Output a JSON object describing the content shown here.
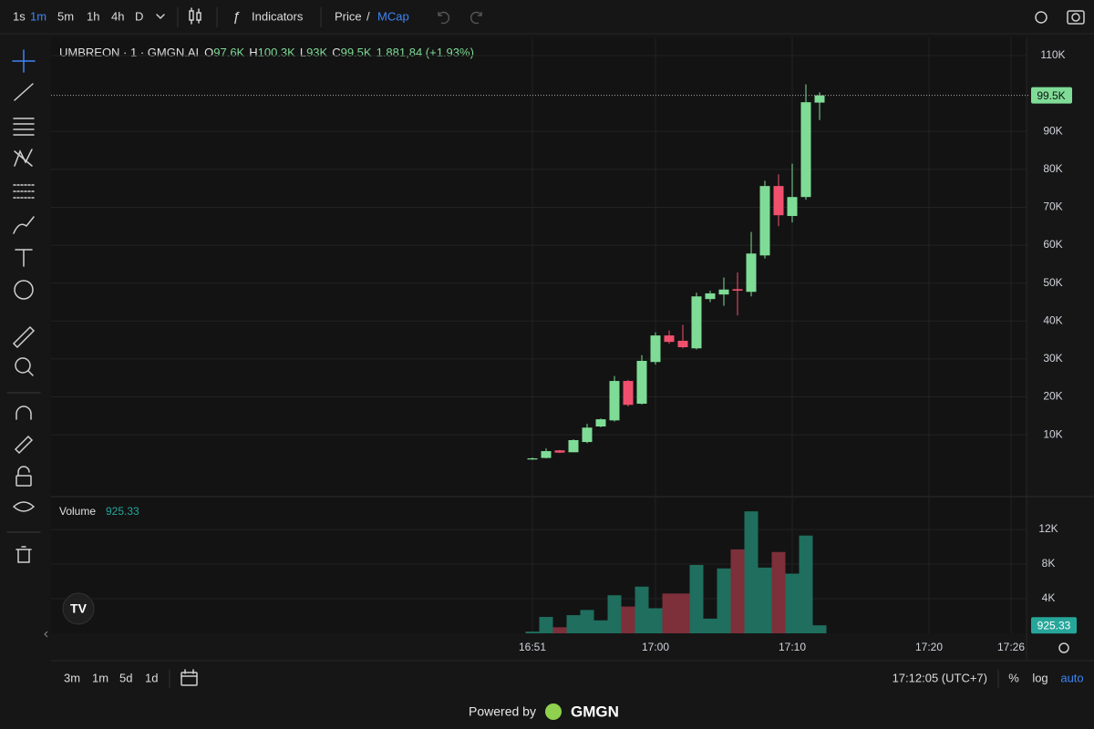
{
  "ui": {
    "intervals": [
      "1s",
      "1m",
      "5m",
      "1h",
      "4h",
      "D"
    ],
    "indicators": "Indicators",
    "price": "Price",
    "separator": "/",
    "mcap": "MCap",
    "ranges": [
      "3m",
      "1m",
      "5d",
      "1d"
    ],
    "clock": "17:12:05 (UTC+7)",
    "percent": "%",
    "log": "log",
    "auto": "auto",
    "powered_by": "Powered by",
    "brand": "GMGN"
  },
  "chart_data": [
    {
      "type": "candlestick",
      "title": "UMBREON · 1 · GMGN.AI",
      "ohlc": [
        {
          "name": "O",
          "label": "97.6K"
        },
        {
          "name": "H",
          "label": "100.3K"
        },
        {
          "name": "L",
          "label": "93K"
        },
        {
          "name": "C",
          "label": "99.5K"
        }
      ],
      "change": "1.881,84 (+1.93%)",
      "categories": [
        "16:51",
        null,
        null,
        null,
        null,
        null,
        null,
        null,
        null,
        "17:00",
        null,
        null,
        null,
        null,
        null,
        null,
        null,
        null,
        null,
        "17:10",
        null,
        null,
        null,
        null,
        null,
        null,
        null,
        null,
        null,
        "17:20",
        null,
        null,
        null,
        null,
        null,
        "17:26"
      ],
      "open": [
        3500,
        3900,
        5900,
        5400,
        8100,
        12200,
        13800,
        24200,
        18200,
        29200,
        36200,
        34800,
        32800,
        45800,
        47000,
        48400,
        47700,
        57300,
        75600,
        67700,
        72700,
        97600,
        null,
        null,
        null,
        null,
        null,
        null,
        null,
        null,
        null,
        null,
        null,
        null,
        null,
        null
      ],
      "high": [
        4000,
        6400,
        6000,
        8800,
        12900,
        14300,
        25500,
        24500,
        31000,
        37000,
        37500,
        39000,
        47500,
        48000,
        51500,
        52800,
        63500,
        77000,
        78700,
        81500,
        102400,
        100300,
        null,
        null,
        null,
        null,
        null,
        null,
        null,
        null,
        null,
        null,
        null,
        null,
        null,
        null
      ],
      "low": [
        3400,
        3800,
        5200,
        5400,
        7800,
        12000,
        13500,
        17500,
        18000,
        28500,
        34000,
        32800,
        32500,
        45000,
        44000,
        41500,
        46500,
        56500,
        65000,
        66000,
        72000,
        93000,
        null,
        null,
        null,
        null,
        null,
        null,
        null,
        null,
        null,
        null,
        null,
        null,
        null,
        null
      ],
      "close": [
        3800,
        5700,
        5300,
        8600,
        11900,
        14100,
        24200,
        17900,
        29500,
        36200,
        34500,
        33100,
        46500,
        47300,
        48300,
        48000,
        57800,
        75600,
        67900,
        72700,
        97700,
        99500,
        null,
        null,
        null,
        null,
        null,
        null,
        null,
        null,
        null,
        null,
        null,
        null,
        null,
        null
      ],
      "up_color": "#7fdc96",
      "down_color": "#f0506e",
      "ylim": [
        -6300,
        114800
      ],
      "yticks": [
        {
          "value": 10000,
          "label": "10K"
        },
        {
          "value": 20000,
          "label": "20K"
        },
        {
          "value": 30000,
          "label": "30K"
        },
        {
          "value": 40000,
          "label": "40K"
        },
        {
          "value": 50000,
          "label": "50K"
        },
        {
          "value": 60000,
          "label": "60K"
        },
        {
          "value": 70000,
          "label": "70K"
        },
        {
          "value": 80000,
          "label": "80K"
        },
        {
          "value": 90000,
          "label": "90K"
        },
        {
          "value": 110000,
          "label": "110K"
        }
      ],
      "last_price": {
        "value": 99500,
        "label": "99.5K"
      },
      "grid": true
    },
    {
      "type": "bar",
      "title": "Volume",
      "last_value_label": "925.33",
      "values": [
        200,
        1900,
        700,
        2100,
        2700,
        1500,
        4400,
        3100,
        5400,
        2900,
        4600,
        4600,
        7900,
        1700,
        7500,
        9700,
        14100,
        7600,
        9400,
        6900,
        11300,
        925.33,
        null,
        null,
        null,
        null,
        null,
        null,
        null,
        null,
        null,
        null,
        null,
        null,
        null,
        null
      ],
      "up_color": "#1f6e5e",
      "down_color": "#7d2f3a",
      "label_color": "#26a69a",
      "ylim": [
        0,
        15800
      ],
      "yticks": [
        {
          "value": 4000,
          "label": "4K"
        },
        {
          "value": 8000,
          "label": "8K"
        },
        {
          "value": 12000,
          "label": "12K"
        }
      ]
    }
  ]
}
